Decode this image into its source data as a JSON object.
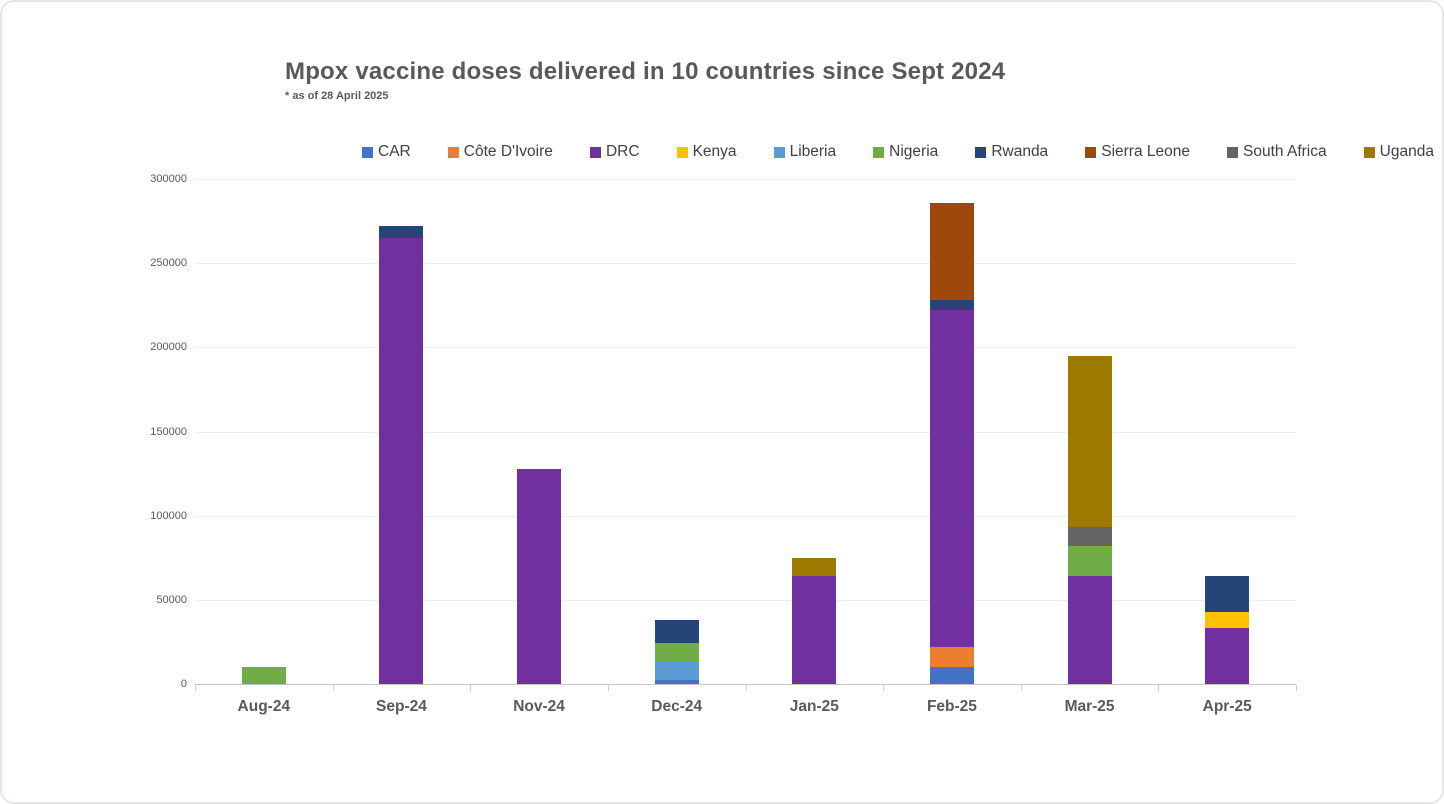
{
  "chart": {
    "title": "Mpox vaccine doses delivered in 10 countries since Sept 2024",
    "subtitle": "* as of 28 April 2025"
  },
  "chart_data": {
    "type": "bar",
    "stacked": true,
    "title": "Mpox vaccine doses delivered in 10 countries since Sept 2024",
    "subtitle": "* as of 28 April 2025",
    "legend_position": "top",
    "grid": true,
    "categories": [
      "Aug-24",
      "Sep-24",
      "Nov-24",
      "Dec-24",
      "Jan-25",
      "Feb-25",
      "Mar-25",
      "Apr-25"
    ],
    "y_axis": {
      "min": 0,
      "max": 300000,
      "step": 50000,
      "tick_labels": [
        "0",
        "50000",
        "100000",
        "150000",
        "200000",
        "250000",
        "300000"
      ]
    },
    "series": [
      {
        "name": "CAR",
        "color": "#4472C4",
        "values": [
          0,
          0,
          0,
          2500,
          0,
          10000,
          0,
          0
        ]
      },
      {
        "name": "Côte D'Ivoire",
        "color": "#ED7D31",
        "values": [
          0,
          0,
          0,
          0,
          0,
          12000,
          0,
          0
        ]
      },
      {
        "name": "DRC",
        "color": "#7030A0",
        "values": [
          0,
          265000,
          127500,
          0,
          64000,
          200000,
          64000,
          33000
        ]
      },
      {
        "name": "Kenya",
        "color": "#FFC000",
        "values": [
          0,
          0,
          0,
          0,
          0,
          0,
          0,
          10000
        ]
      },
      {
        "name": "Liberia",
        "color": "#5B9BD5",
        "values": [
          0,
          0,
          0,
          11000,
          0,
          0,
          0,
          0
        ]
      },
      {
        "name": "Nigeria",
        "color": "#70AD47",
        "values": [
          10000,
          0,
          0,
          11000,
          0,
          0,
          18000,
          0
        ]
      },
      {
        "name": "Rwanda",
        "color": "#264478",
        "values": [
          0,
          7000,
          0,
          13500,
          0,
          6000,
          0,
          21000
        ]
      },
      {
        "name": "Sierra Leone",
        "color": "#9E480E",
        "values": [
          0,
          0,
          0,
          0,
          0,
          58000,
          0,
          0
        ]
      },
      {
        "name": "South Africa",
        "color": "#636363",
        "values": [
          0,
          0,
          0,
          0,
          0,
          0,
          11000,
          0
        ]
      },
      {
        "name": "Uganda",
        "color": "#9C7A00",
        "values": [
          0,
          0,
          0,
          0,
          11000,
          0,
          102000,
          0
        ]
      }
    ],
    "totals_by_category": [
      10000,
      272000,
      127500,
      38000,
      75000,
      286000,
      195000,
      64000
    ]
  }
}
